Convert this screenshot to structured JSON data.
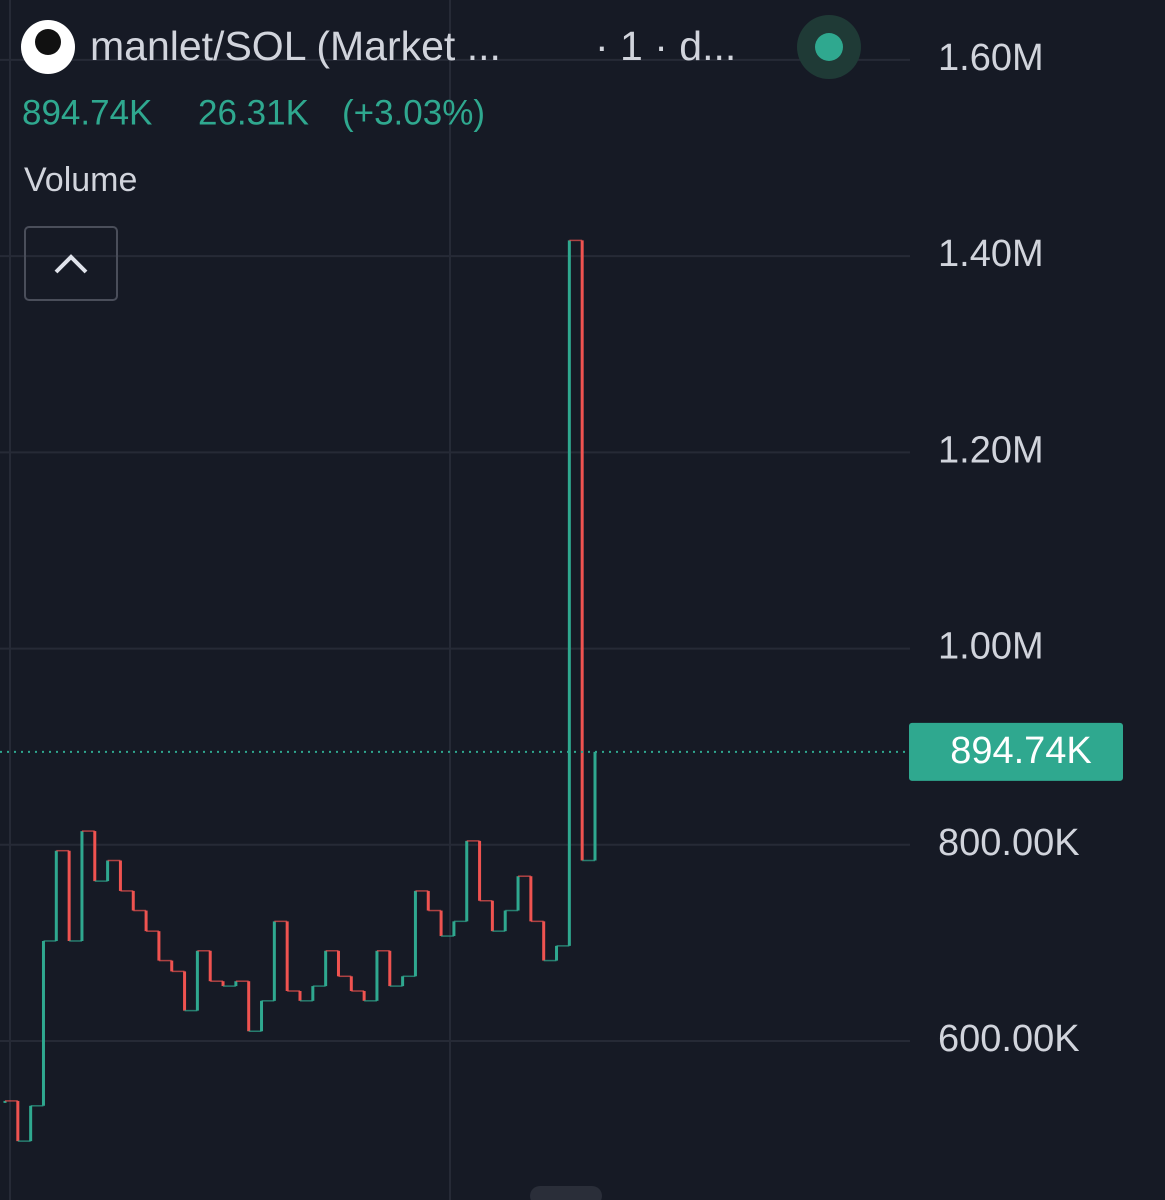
{
  "chart_data": {
    "type": "candles",
    "title": "manlet/SOL (Market ...",
    "interval": "· 1 · d...",
    "last_price": {
      "value": 894740,
      "label": "894.74K"
    },
    "change": "26.31K",
    "change_pct": "(+3.03%)",
    "indicator": "Volume",
    "up_color": "#2fa88f",
    "down_color": "#ef5350",
    "values": [
      539000,
      498000,
      534000,
      702000,
      794000,
      702000,
      814000,
      763000,
      784000,
      753000,
      733000,
      712000,
      682000,
      671000,
      631000,
      692000,
      661000,
      656000,
      661000,
      610000,
      641000,
      722000,
      651000,
      641000,
      656000,
      692000,
      666000,
      651000,
      641000,
      692000,
      656000,
      666000,
      753000,
      733000,
      707000,
      722000,
      804000,
      743000,
      712000,
      733000,
      768000,
      722000,
      682000,
      697000,
      1416000,
      784000,
      894740
    ],
    "ylim": [
      438000,
      1661000
    ],
    "yticks": [
      {
        "value": 600000,
        "label": "600.00K"
      },
      {
        "value": 800000,
        "label": "800.00K"
      },
      {
        "value": 1000000,
        "label": "1.00M"
      },
      {
        "value": 1200000,
        "label": "1.20M"
      },
      {
        "value": 1400000,
        "label": "1.40M"
      },
      {
        "value": 1600000,
        "label": "1.60M"
      }
    ],
    "grid": true
  }
}
